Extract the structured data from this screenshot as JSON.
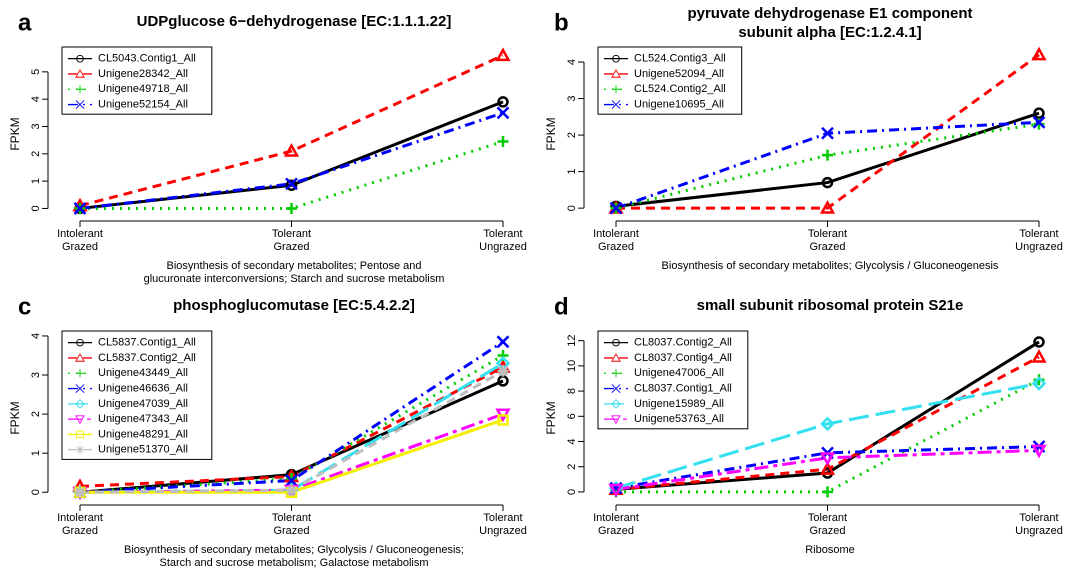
{
  "chart_data": [
    {
      "type": "line",
      "panel_label": "a",
      "title": "UDPglucose 6−dehydrogenase [EC:1.1.1.22]",
      "x_label": "Biosynthesis of secondary metabolites; Pentose and\nglucuronate interconversions; Starch and sucrose metabolism",
      "y_label": "FPKM",
      "categories": [
        "Intolerant\nGrazed",
        "Tolerant\nGrazed",
        "Tolerant\nUngrazed"
      ],
      "ylim": [
        -0.35,
        5.8
      ],
      "yticks": [
        0,
        1,
        2,
        3,
        4,
        5
      ],
      "legend": "top-left",
      "series": [
        {
          "name": "CL5043.Contig1_All",
          "color": "#000000",
          "marker": "circle",
          "linestyle": "solid",
          "values": [
            0,
            0.85,
            3.9
          ]
        },
        {
          "name": "Unigene28342_All",
          "color": "#ff0000",
          "marker": "triangle",
          "linestyle": "dashed",
          "values": [
            0.1,
            2.1,
            5.6
          ]
        },
        {
          "name": "Unigene49718_All",
          "color": "#00cd00",
          "marker": "plus",
          "linestyle": "dotted",
          "values": [
            0,
            0,
            2.45
          ]
        },
        {
          "name": "Unigene52154_All",
          "color": "#0000ff",
          "marker": "x",
          "linestyle": "dashdot",
          "values": [
            0,
            0.9,
            3.5
          ]
        }
      ]
    },
    {
      "type": "line",
      "panel_label": "b",
      "title": "pyruvate dehydrogenase E1 component\nsubunit alpha [EC:1.2.4.1]",
      "x_label": "Biosynthesis of secondary metabolites; Glycolysis / Gluconeogenesis",
      "y_label": "FPKM",
      "categories": [
        "Intolerant\nGrazed",
        "Tolerant\nGrazed",
        "Tolerant\nUngrazed"
      ],
      "ylim": [
        -0.27,
        4.33
      ],
      "yticks": [
        0,
        1,
        2,
        3,
        4
      ],
      "legend": "top-left",
      "series": [
        {
          "name": "CL524.Contig3_All",
          "color": "#000000",
          "marker": "circle",
          "linestyle": "solid",
          "values": [
            0.05,
            0.7,
            2.6
          ]
        },
        {
          "name": "Unigene52094_All",
          "color": "#ff0000",
          "marker": "triangle",
          "linestyle": "dashed",
          "values": [
            0,
            0,
            4.2
          ]
        },
        {
          "name": "CL524.Contig2_All",
          "color": "#00cd00",
          "marker": "plus",
          "linestyle": "dotted",
          "values": [
            0,
            1.45,
            2.3
          ]
        },
        {
          "name": "Unigene10695_All",
          "color": "#0000ff",
          "marker": "x",
          "linestyle": "dashdot",
          "values": [
            0,
            2.05,
            2.35
          ]
        }
      ]
    },
    {
      "type": "line",
      "panel_label": "c",
      "title": "phosphoglucomutase [EC:5.4.2.2]",
      "x_label": "Biosynthesis of secondary metabolites; Glycolysis / Gluconeogenesis;\nStarch and sucrose metabolism; Galactose metabolism",
      "y_label": "FPKM",
      "categories": [
        "Intolerant\nGrazed",
        "Tolerant\nGrazed",
        "Tolerant\nUngrazed"
      ],
      "ylim": [
        -0.25,
        4.05
      ],
      "yticks": [
        0,
        1,
        2,
        3,
        4
      ],
      "legend": "top-left",
      "series": [
        {
          "name": "CL5837.Contig1_All",
          "color": "#000000",
          "marker": "circle",
          "linestyle": "solid",
          "values": [
            0,
            0.45,
            2.85
          ]
        },
        {
          "name": "CL5837.Contig2_All",
          "color": "#ff0000",
          "marker": "triangle",
          "linestyle": "dashed",
          "values": [
            0.15,
            0.4,
            3.2
          ]
        },
        {
          "name": "Unigene43449_All",
          "color": "#00cd00",
          "marker": "plus",
          "linestyle": "dotted",
          "values": [
            0,
            0.35,
            3.5
          ]
        },
        {
          "name": "Unigene46636_All",
          "color": "#0000ff",
          "marker": "x",
          "linestyle": "dashdot",
          "values": [
            0,
            0.3,
            3.85
          ]
        },
        {
          "name": "Unigene47039_All",
          "color": "#33e0f0",
          "marker": "diamond",
          "linestyle": "longdash",
          "values": [
            0,
            0.05,
            3.3
          ]
        },
        {
          "name": "Unigene47343_All",
          "color": "#ff00ff",
          "marker": "triangle-down",
          "linestyle": "twodash",
          "values": [
            0,
            0.05,
            2.0
          ]
        },
        {
          "name": "Unigene48291_All",
          "color": "#f5f000",
          "marker": "square",
          "linestyle": "solid",
          "values": [
            0,
            0,
            1.85
          ]
        },
        {
          "name": "Unigene51370_All",
          "color": "#bebebe",
          "marker": "asterisk",
          "linestyle": "dashed",
          "values": [
            0,
            0.05,
            3.1
          ]
        }
      ]
    },
    {
      "type": "line",
      "panel_label": "d",
      "title": "small subunit ribosomal protein S21e",
      "x_label": "Ribosome",
      "y_label": "FPKM",
      "categories": [
        "Intolerant\nGrazed",
        "Tolerant\nGrazed",
        "Tolerant\nUngrazed"
      ],
      "ylim": [
        -0.8,
        12.53
      ],
      "yticks": [
        0,
        2,
        4,
        6,
        8,
        10,
        12
      ],
      "legend": "top-left",
      "series": [
        {
          "name": "CL8037.Contig2_All",
          "color": "#000000",
          "marker": "circle",
          "linestyle": "solid",
          "values": [
            0.2,
            1.5,
            11.9
          ]
        },
        {
          "name": "CL8037.Contig4_All",
          "color": "#ff0000",
          "marker": "triangle",
          "linestyle": "dashed",
          "values": [
            0.2,
            1.8,
            10.7
          ]
        },
        {
          "name": "Unigene47006_All",
          "color": "#00cd00",
          "marker": "plus",
          "linestyle": "dotted",
          "values": [
            0,
            0,
            8.9
          ]
        },
        {
          "name": "CL8037.Contig1_All",
          "color": "#0000ff",
          "marker": "x",
          "linestyle": "dashdot",
          "values": [
            0.3,
            3.1,
            3.6
          ]
        },
        {
          "name": "Unigene15989_All",
          "color": "#33e0f0",
          "marker": "diamond",
          "linestyle": "longdash",
          "values": [
            0.3,
            5.4,
            8.6
          ]
        },
        {
          "name": "Unigene53763_All",
          "color": "#ff00ff",
          "marker": "triangle-down",
          "linestyle": "twodash",
          "values": [
            0.2,
            2.7,
            3.3
          ]
        }
      ]
    }
  ]
}
